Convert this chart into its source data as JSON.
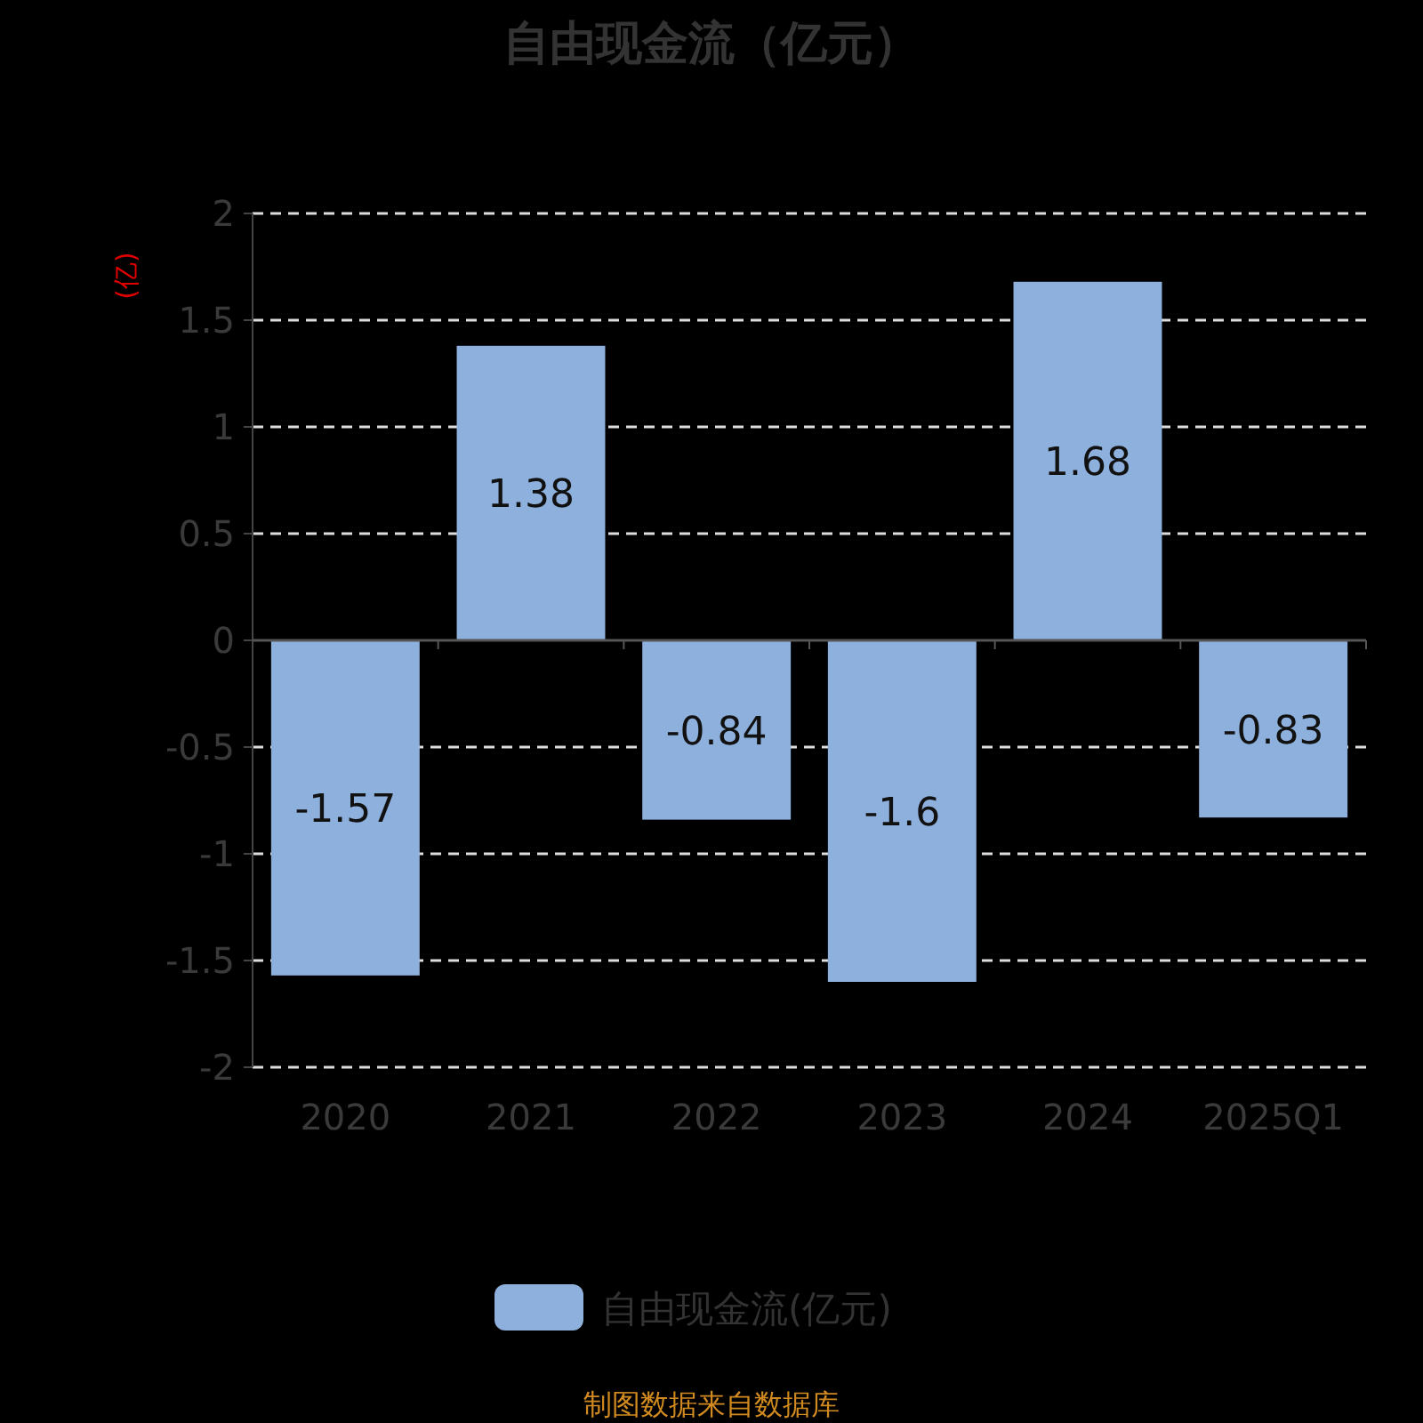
{
  "chart_data": {
    "type": "bar",
    "title": "自由现金流（亿元）",
    "ylabel": "(亿)",
    "categories": [
      "2020",
      "2021",
      "2022",
      "2023",
      "2024",
      "2025Q1"
    ],
    "series": [
      {
        "name": "自由现金流(亿元)",
        "color": "#8eb0dc",
        "values": [
          -1.57,
          1.38,
          -0.84,
          -1.6,
          1.68,
          -0.83
        ]
      }
    ],
    "ylim": [
      -2,
      2
    ],
    "yticks": [
      -2,
      -1.5,
      -1,
      -0.5,
      0,
      0.5,
      1,
      1.5,
      2
    ],
    "grid": "y",
    "legend": "bottom",
    "data_labels": true,
    "annotations": [
      "制图数据来自数据库"
    ]
  }
}
